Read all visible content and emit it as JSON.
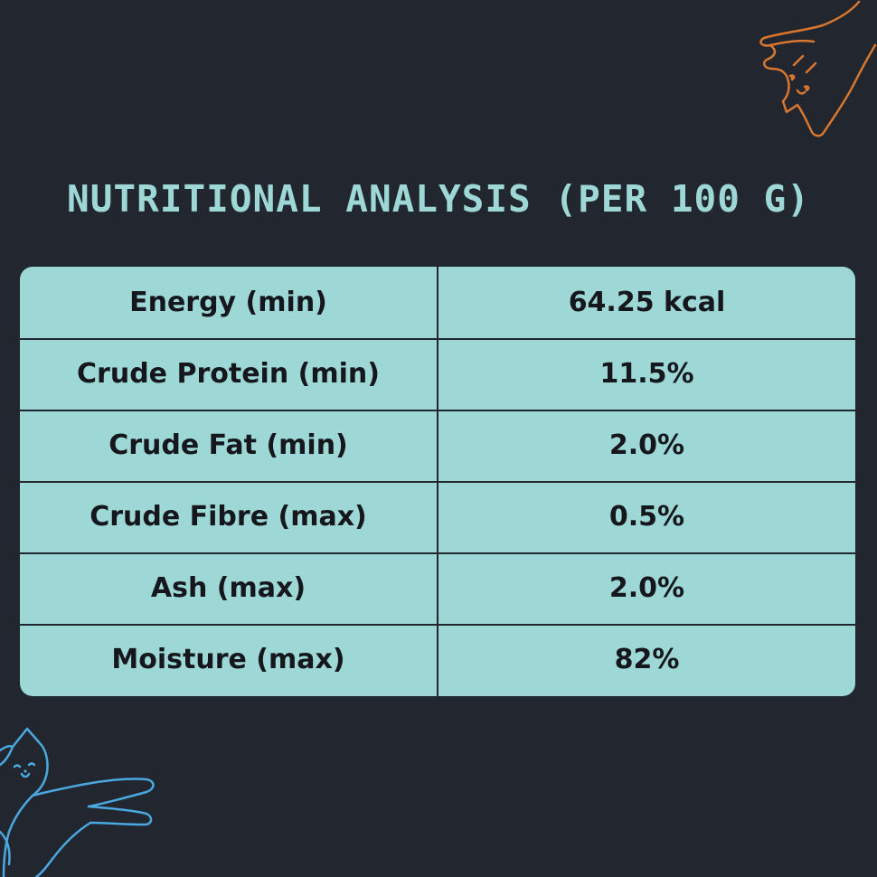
{
  "title": "NUTRITIONAL ANALYSIS (PER 100 G)",
  "rows": [
    {
      "label": "Energy (min)",
      "value": "64.25 kcal"
    },
    {
      "label": "Crude Protein (min)",
      "value": "11.5%"
    },
    {
      "label": "Crude Fat (min)",
      "value": "2.0%"
    },
    {
      "label": "Crude Fibre (max)",
      "value": "0.5%"
    },
    {
      "label": "Ash (max)",
      "value": "2.0%"
    },
    {
      "label": "Moisture (max)",
      "value": "82%"
    }
  ],
  "colors": {
    "background": "#22262f",
    "table": "#9dd8d6",
    "title": "#9dd8d6",
    "text": "#15171c",
    "cat_top": "#d9772f",
    "cat_bottom": "#4aa8e0"
  },
  "decorations": [
    "cat-illustration-top-right",
    "cat-illustration-bottom-left"
  ]
}
